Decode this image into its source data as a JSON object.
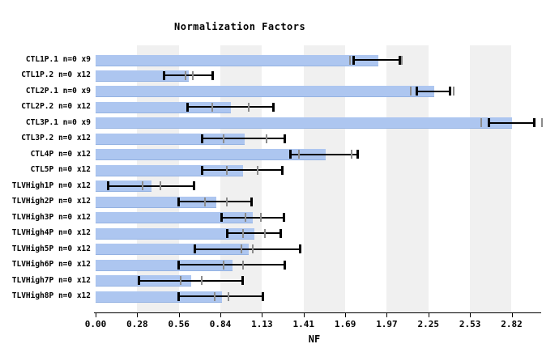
{
  "chart_data": {
    "type": "bar",
    "orientation": "horizontal",
    "title": "Normalization Factors",
    "xlabel": "NF",
    "xlim": [
      0,
      3.06
    ],
    "xtick_labels": [
      "0.00",
      "0.28",
      "0.56",
      "0.84",
      "1.13",
      "1.41",
      "1.69",
      "1.97",
      "2.25",
      "2.53",
      "2.82"
    ],
    "grid": "alternating vertical gray/white bands, one band per tick interval, gray on odd intervals",
    "legend": "none",
    "bar_color": "#adc6f0",
    "stripe_color": "#f0f0f0",
    "error_bar_color": "#000000",
    "gray_mark_color": "#8c8c8c",
    "rows": [
      {
        "label": "CTL1P.1 n=0 x9",
        "value": 1.92,
        "err_lo": 1.75,
        "err_hi": 2.07,
        "mark_lo": 1.73,
        "mark_hi": 2.08
      },
      {
        "label": "CTL1P.2 n=0 x12",
        "value": 0.63,
        "err_lo": 0.46,
        "err_hi": 0.8,
        "mark_lo": 0.61,
        "mark_hi": 0.66
      },
      {
        "label": "CTL2P.1 n=0 x9",
        "value": 2.3,
        "err_lo": 2.18,
        "err_hi": 2.41,
        "mark_lo": 2.14,
        "mark_hi": 2.43
      },
      {
        "label": "CTL2P.2 n=0 x12",
        "value": 0.92,
        "err_lo": 0.62,
        "err_hi": 1.21,
        "mark_lo": 0.79,
        "mark_hi": 1.04
      },
      {
        "label": "CTL3P.1 n=0 x9",
        "value": 2.83,
        "err_lo": 2.67,
        "err_hi": 2.98,
        "mark_lo": 2.62,
        "mark_hi": 3.03
      },
      {
        "label": "CTL3P.2 n=0 x12",
        "value": 1.01,
        "err_lo": 0.72,
        "err_hi": 1.29,
        "mark_lo": 0.87,
        "mark_hi": 1.16
      },
      {
        "label": "CTL4P n=0 x12",
        "value": 1.56,
        "err_lo": 1.32,
        "err_hi": 1.78,
        "mark_lo": 1.38,
        "mark_hi": 1.74
      },
      {
        "label": "CTL5P n=0 x12",
        "value": 1.0,
        "err_lo": 0.72,
        "err_hi": 1.27,
        "mark_lo": 0.89,
        "mark_hi": 1.1
      },
      {
        "label": "TLVHigh1P n=0 x12",
        "value": 0.38,
        "err_lo": 0.08,
        "err_hi": 0.67,
        "mark_lo": 0.32,
        "mark_hi": 0.44
      },
      {
        "label": "TLVHigh2P n=0 x12",
        "value": 0.82,
        "err_lo": 0.56,
        "err_hi": 1.06,
        "mark_lo": 0.74,
        "mark_hi": 0.89
      },
      {
        "label": "TLVHigh3P n=0 x12",
        "value": 1.07,
        "err_lo": 0.85,
        "err_hi": 1.28,
        "mark_lo": 1.02,
        "mark_hi": 1.12
      },
      {
        "label": "TLVHigh4P n=0 x12",
        "value": 1.08,
        "err_lo": 0.89,
        "err_hi": 1.26,
        "mark_lo": 1.0,
        "mark_hi": 1.15
      },
      {
        "label": "TLVHigh5P n=0 x12",
        "value": 1.04,
        "err_lo": 0.67,
        "err_hi": 1.39,
        "mark_lo": 0.99,
        "mark_hi": 1.07
      },
      {
        "label": "TLVHigh6P n=0 x12",
        "value": 0.93,
        "err_lo": 0.56,
        "err_hi": 1.29,
        "mark_lo": 0.87,
        "mark_hi": 1.0
      },
      {
        "label": "TLVHigh7P n=0 x12",
        "value": 0.65,
        "err_lo": 0.29,
        "err_hi": 1.0,
        "mark_lo": 0.58,
        "mark_hi": 0.72
      },
      {
        "label": "TLVHigh8P n=0 x12",
        "value": 0.86,
        "err_lo": 0.56,
        "err_hi": 1.14,
        "mark_lo": 0.81,
        "mark_hi": 0.9
      }
    ]
  }
}
